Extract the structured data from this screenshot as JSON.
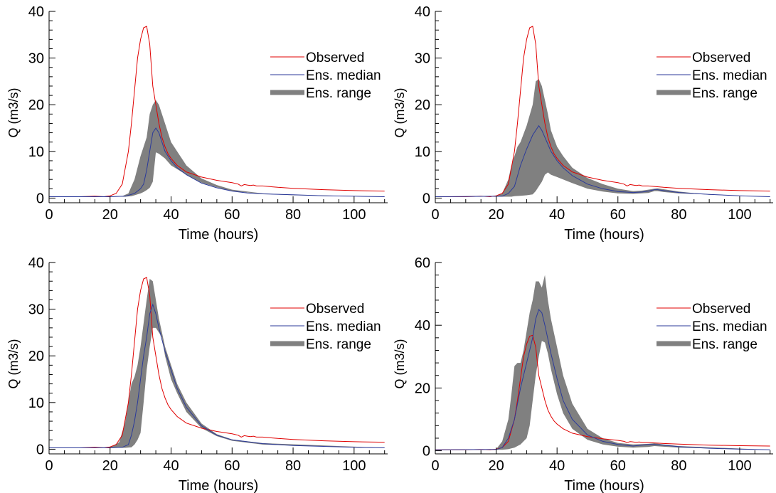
{
  "chart_data": [
    {
      "type": "line",
      "xlabel": "Time (hours)",
      "ylabel": "Q (m3/s)",
      "xlim": [
        0,
        111
      ],
      "ylim": [
        -1,
        40
      ],
      "xticks": [
        0,
        20,
        40,
        60,
        80,
        100
      ],
      "yticks": [
        0,
        10,
        20,
        30,
        40
      ],
      "legend": {
        "position": "right",
        "entries": [
          "Observed",
          "Ens. median",
          "Ens. range"
        ]
      },
      "observed": {
        "x": [
          0,
          10,
          15,
          18,
          20,
          22,
          24,
          26,
          27,
          28,
          29,
          30,
          31,
          32,
          33,
          34,
          35,
          36,
          37,
          38,
          39,
          40,
          42,
          45,
          50,
          55,
          60,
          62,
          63,
          64,
          65,
          66,
          67,
          68,
          70,
          75,
          80,
          90,
          100,
          110
        ],
        "y": [
          0.3,
          0.3,
          0.4,
          0.3,
          0.5,
          1,
          3,
          10,
          16,
          23,
          30,
          34,
          36.5,
          36.8,
          33,
          24,
          20,
          16,
          13,
          11,
          9.5,
          8.5,
          7,
          5.6,
          4.5,
          3.8,
          3.3,
          3,
          2.6,
          2.9,
          2.8,
          2.7,
          2.8,
          2.6,
          2.6,
          2.3,
          2.1,
          1.8,
          1.6,
          1.5
        ]
      },
      "median": {
        "x": [
          0,
          20,
          25,
          28,
          30,
          31,
          32,
          33,
          34,
          35,
          36,
          37,
          38,
          40,
          42,
          45,
          50,
          55,
          60,
          65,
          70,
          80,
          90,
          100,
          110
        ],
        "y": [
          0.3,
          0.3,
          0.4,
          1,
          2,
          3,
          6,
          10,
          14,
          15,
          14,
          12,
          10,
          8,
          6.5,
          5,
          3.2,
          2.2,
          1.5,
          1.1,
          0.9,
          0.7,
          0.5,
          0.4,
          0.3
        ]
      },
      "range_upper": {
        "x": [
          0,
          24,
          26,
          28,
          30,
          32,
          33,
          34,
          35,
          36,
          38,
          40,
          45,
          50,
          55,
          60,
          70,
          80,
          110
        ],
        "y": [
          0.3,
          0.4,
          1,
          4,
          9,
          13,
          18,
          20,
          21,
          20,
          16,
          12,
          7,
          4.2,
          2.8,
          1.8,
          1,
          0.7,
          0.3
        ]
      },
      "range_lower": {
        "x": [
          0,
          25,
          27,
          28,
          30,
          31,
          32,
          33,
          34,
          35,
          36,
          38,
          40,
          45,
          50,
          55,
          60,
          70,
          80,
          110
        ],
        "y": [
          0.3,
          0.3,
          0.4,
          0.6,
          1,
          1.3,
          1.7,
          2.2,
          3.5,
          9.8,
          9.5,
          8.5,
          7,
          5,
          3.3,
          2.3,
          1.5,
          0.9,
          0.6,
          0.3
        ]
      }
    },
    {
      "type": "line",
      "xlabel": "Time (hours)",
      "ylabel": "Q (m3/s)",
      "xlim": [
        0,
        111
      ],
      "ylim": [
        -1,
        40
      ],
      "xticks": [
        0,
        20,
        40,
        60,
        80,
        100
      ],
      "yticks": [
        0,
        10,
        20,
        30,
        40
      ],
      "legend": {
        "position": "right",
        "entries": [
          "Observed",
          "Ens. median",
          "Ens. range"
        ]
      },
      "observed": {
        "x": [
          0,
          10,
          15,
          18,
          20,
          22,
          24,
          26,
          27,
          28,
          29,
          30,
          31,
          32,
          33,
          34,
          35,
          36,
          37,
          38,
          39,
          40,
          42,
          45,
          50,
          55,
          60,
          62,
          63,
          64,
          65,
          66,
          67,
          68,
          70,
          75,
          80,
          90,
          100,
          110
        ],
        "y": [
          0.3,
          0.3,
          0.4,
          0.3,
          0.5,
          1,
          3,
          10,
          16,
          23,
          30,
          34,
          36.5,
          36.8,
          33,
          24,
          20,
          16,
          13,
          11,
          9.5,
          8.5,
          7,
          5.6,
          4.5,
          3.8,
          3.3,
          3,
          2.6,
          2.9,
          2.8,
          2.7,
          2.8,
          2.6,
          2.6,
          2.3,
          2.1,
          1.8,
          1.6,
          1.5
        ]
      },
      "median": {
        "x": [
          0,
          22,
          24,
          26,
          28,
          30,
          32,
          34,
          35,
          36,
          38,
          40,
          42,
          45,
          50,
          55,
          60,
          65,
          68,
          70,
          72,
          73,
          75,
          80,
          90,
          100,
          110
        ],
        "y": [
          0.3,
          0.4,
          1,
          2.5,
          7,
          10.5,
          13.5,
          15.5,
          14.5,
          13,
          10,
          8,
          6.5,
          4.8,
          3,
          2,
          1.4,
          1.2,
          1.3,
          1.5,
          1.8,
          1.8,
          1.6,
          1.2,
          0.8,
          0.5,
          0.3
        ]
      },
      "range_upper": {
        "x": [
          0,
          20,
          22,
          24,
          25,
          26,
          27,
          28,
          30,
          32,
          33,
          34,
          35,
          36,
          37,
          38,
          40,
          42,
          45,
          50,
          55,
          60,
          65,
          68,
          70,
          72,
          73,
          75,
          80,
          90,
          110
        ],
        "y": [
          0.3,
          0.4,
          1,
          4,
          7,
          9,
          11,
          12,
          15.5,
          20,
          25,
          25.5,
          24,
          21,
          18,
          14.5,
          11,
          9,
          6.5,
          4.3,
          3,
          2,
          1.5,
          1.6,
          1.8,
          2,
          2.1,
          1.9,
          1.4,
          0.7,
          0.3
        ]
      },
      "range_lower": {
        "x": [
          0,
          25,
          26,
          28,
          30,
          32,
          33,
          34,
          35,
          36,
          37,
          38,
          40,
          45,
          50,
          55,
          60,
          65,
          70,
          72,
          73,
          75,
          80,
          110
        ],
        "y": [
          0.3,
          0.3,
          0.4,
          0.5,
          0.6,
          0.8,
          1.5,
          2.5,
          3.5,
          5,
          5.5,
          5,
          4.5,
          3.2,
          2,
          1.4,
          1,
          0.9,
          1.1,
          1.5,
          1.5,
          1.3,
          1,
          0.3
        ]
      }
    },
    {
      "type": "line",
      "xlabel": "Time (hours)",
      "ylabel": "Q (m3/s)",
      "xlim": [
        0,
        111
      ],
      "ylim": [
        -1,
        40
      ],
      "xticks": [
        0,
        20,
        40,
        60,
        80,
        100
      ],
      "yticks": [
        0,
        10,
        20,
        30,
        40
      ],
      "legend": {
        "position": "right",
        "entries": [
          "Observed",
          "Ens. median",
          "Ens. range"
        ]
      },
      "observed": {
        "x": [
          0,
          10,
          15,
          18,
          20,
          22,
          24,
          26,
          27,
          28,
          29,
          30,
          31,
          32,
          33,
          34,
          35,
          36,
          37,
          38,
          39,
          40,
          42,
          45,
          50,
          55,
          60,
          62,
          63,
          64,
          65,
          66,
          67,
          68,
          70,
          75,
          80,
          90,
          100,
          110
        ],
        "y": [
          0.3,
          0.3,
          0.4,
          0.3,
          0.5,
          1,
          3,
          10,
          16,
          23,
          30,
          34,
          36.5,
          36.8,
          33,
          24,
          20,
          16,
          13,
          11,
          9.5,
          8.5,
          7,
          5.6,
          4.5,
          3.8,
          3.3,
          3,
          2.6,
          2.9,
          2.8,
          2.7,
          2.8,
          2.6,
          2.6,
          2.3,
          2.1,
          1.8,
          1.6,
          1.5
        ]
      },
      "median": {
        "x": [
          0,
          20,
          24,
          26,
          27,
          28,
          29,
          30,
          31,
          32,
          33,
          34,
          35,
          36,
          38,
          40,
          42,
          45,
          50,
          55,
          60,
          70,
          80,
          90,
          100,
          110
        ],
        "y": [
          0.3,
          0.3,
          0.4,
          1,
          3,
          6,
          10,
          15,
          20,
          24,
          29,
          31,
          29,
          26,
          21,
          17,
          13,
          9,
          5,
          3,
          2,
          1.2,
          0.8,
          0.6,
          0.4,
          0.3
        ]
      },
      "range_upper": {
        "x": [
          0,
          20,
          23,
          25,
          26,
          27,
          28,
          29,
          30,
          31,
          32,
          33,
          34,
          35,
          36,
          38,
          40,
          42,
          45,
          50,
          55,
          60,
          70,
          110
        ],
        "y": [
          0.3,
          0.4,
          1.5,
          6,
          10,
          14,
          15.5,
          18,
          22,
          27,
          32,
          36.5,
          36,
          32,
          28,
          22,
          18,
          14,
          10,
          5.5,
          3.2,
          2.1,
          1.3,
          0.3
        ]
      },
      "range_lower": {
        "x": [
          0,
          25,
          27,
          28,
          29,
          30,
          31,
          32,
          33,
          34,
          35,
          36,
          37,
          38,
          40,
          42,
          45,
          50,
          55,
          60,
          70,
          110
        ],
        "y": [
          0.3,
          0.3,
          0.4,
          1,
          2,
          3.5,
          10,
          17,
          22,
          26,
          26,
          25,
          24,
          20,
          15,
          12,
          8,
          4.5,
          2.8,
          1.8,
          1,
          0.3
        ]
      }
    },
    {
      "type": "line",
      "xlabel": "Time (hours)",
      "ylabel": "Q (m3/s)",
      "xlim": [
        0,
        111
      ],
      "ylim": [
        -1,
        60
      ],
      "xticks": [
        0,
        20,
        40,
        60,
        80,
        100
      ],
      "yticks": [
        0,
        20,
        40,
        60
      ],
      "legend": {
        "position": "right",
        "entries": [
          "Observed",
          "Ens. median",
          "Ens. range"
        ]
      },
      "observed": {
        "x": [
          0,
          10,
          15,
          18,
          20,
          22,
          24,
          26,
          27,
          28,
          29,
          30,
          31,
          32,
          33,
          34,
          35,
          36,
          37,
          38,
          39,
          40,
          42,
          45,
          50,
          55,
          60,
          62,
          63,
          64,
          65,
          66,
          67,
          68,
          70,
          75,
          80,
          90,
          100,
          110
        ],
        "y": [
          0.3,
          0.3,
          0.4,
          0.3,
          0.5,
          1,
          3,
          10,
          16,
          23,
          30,
          34,
          36.5,
          36.8,
          33,
          24,
          20,
          16,
          13,
          11,
          9.5,
          8.5,
          7,
          5.6,
          4.5,
          3.8,
          3.3,
          3,
          2.6,
          2.9,
          2.8,
          2.7,
          2.8,
          2.6,
          2.6,
          2.3,
          2.1,
          1.8,
          1.6,
          1.5
        ]
      },
      "median": {
        "x": [
          0,
          20,
          22,
          24,
          26,
          28,
          30,
          32,
          33,
          34,
          35,
          36,
          38,
          40,
          42,
          45,
          50,
          55,
          60,
          65,
          70,
          72,
          75,
          80,
          90,
          100,
          110
        ],
        "y": [
          0.3,
          0.4,
          1,
          4,
          10,
          20,
          28,
          36,
          42,
          45,
          44,
          40,
          31,
          23,
          16,
          10,
          5,
          3,
          2,
          1.5,
          2,
          2,
          1.8,
          1.3,
          0.8,
          0.5,
          0.3
        ]
      },
      "range_upper": {
        "x": [
          0,
          20,
          22,
          24,
          25,
          26,
          27,
          28,
          29,
          30,
          31,
          32,
          33,
          34,
          35,
          36,
          37,
          38,
          40,
          42,
          45,
          50,
          55,
          60,
          65,
          70,
          72,
          75,
          80,
          110
        ],
        "y": [
          0.3,
          0.5,
          3,
          10,
          18,
          27,
          28,
          28,
          32,
          38,
          44,
          48,
          54,
          54,
          52,
          56,
          48,
          42,
          33,
          24,
          15,
          7,
          4,
          2.5,
          2,
          2.2,
          2.4,
          2,
          1.5,
          0.3
        ]
      },
      "range_lower": {
        "x": [
          0,
          22,
          24,
          26,
          28,
          30,
          31,
          32,
          33,
          34,
          35,
          36,
          37,
          38,
          40,
          42,
          45,
          50,
          55,
          60,
          65,
          70,
          72,
          75,
          80,
          110
        ],
        "y": [
          0.3,
          0.3,
          0.5,
          1,
          2,
          4,
          8,
          16,
          24,
          30,
          35,
          34.5,
          31,
          26,
          18,
          12,
          7,
          3.5,
          2,
          1.3,
          1,
          1.2,
          1.5,
          1.3,
          1,
          0.3
        ]
      }
    }
  ]
}
